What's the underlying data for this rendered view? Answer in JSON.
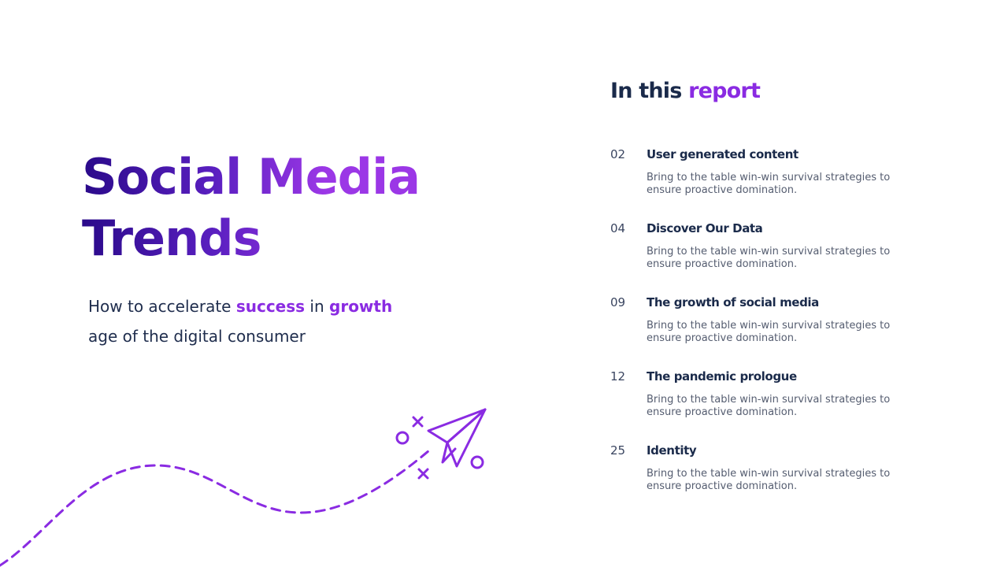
{
  "hero": {
    "title_line1": "Social Media",
    "title_line2": "Trends",
    "subtitle": {
      "part1": "How to accelerate ",
      "highlight1": "success",
      "part2": " in ",
      "highlight2": "growth",
      "part3": "age of the digital consumer"
    }
  },
  "report": {
    "heading_main": "In this ",
    "heading_accent": "report",
    "items": [
      {
        "num": "02",
        "title": "User generated content",
        "desc": "Bring to the table win-win survival strategies to ensure proactive domination."
      },
      {
        "num": "04",
        "title": "Discover Our Data",
        "desc": "Bring to the table win-win survival strategies to ensure proactive domination."
      },
      {
        "num": "09",
        "title": "The growth of social media",
        "desc": "Bring to the table win-win survival strategies to ensure proactive domination."
      },
      {
        "num": "12",
        "title": "The pandemic prologue",
        "desc": "Bring to the table win-win survival strategies to ensure proactive domination."
      },
      {
        "num": "25",
        "title": "Identity",
        "desc": "Bring to the table win-win survival strategies to ensure proactive domination."
      }
    ]
  },
  "colors": {
    "accent": "#8a2be2",
    "navy": "#1a2a4a",
    "title_dark": "#2a0a8a"
  },
  "icons": {
    "illustration": "paper-plane-icon"
  }
}
